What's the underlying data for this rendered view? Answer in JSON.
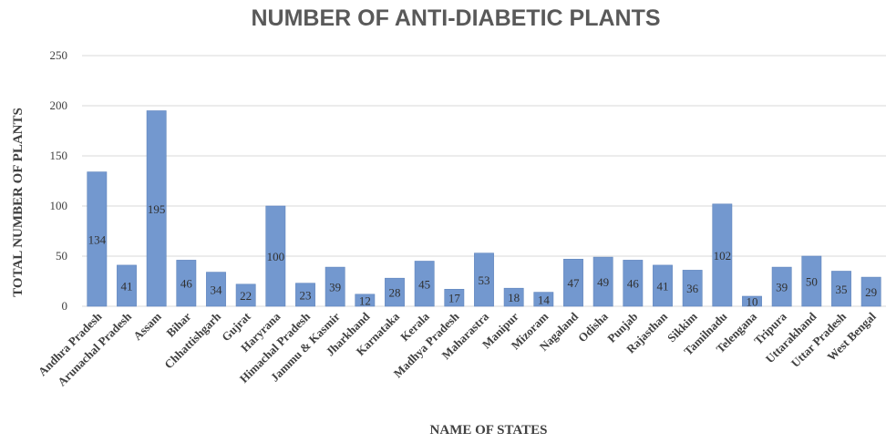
{
  "chart_data": {
    "type": "bar",
    "title": "NUMBER OF ANTI-DIABETIC PLANTS",
    "xlabel": "NAME OF STATES",
    "ylabel": "TOTAL NUMBER OF PLANTS",
    "ylim": [
      0,
      250
    ],
    "yticks": [
      0,
      50,
      100,
      150,
      200,
      250
    ],
    "grid": true,
    "legend": "none",
    "bar_color": "#7398cf",
    "categories": [
      "Andhra Pradesh",
      "Arunachal Pradesh",
      "Assam",
      "Bihar",
      "Chhattishgarh",
      "Gujrat",
      "Haryrana",
      "Himachal Pradesh",
      "Jammu & Kasmir",
      "Jharkhand",
      "Karnataka",
      "Kerala",
      "Madhya Pradesh",
      "Maharastra",
      "Manipur",
      "Mizoram",
      "Nagaland",
      "Odisha",
      "Punjab",
      "Rajasthan",
      "Sikkim",
      "Tamilnadu",
      "Telengana",
      "Tripura",
      "Uttarakhand",
      "Uttar Pradesh",
      "West Bengal"
    ],
    "values": [
      134,
      41,
      195,
      46,
      34,
      22,
      100,
      23,
      39,
      12,
      28,
      45,
      17,
      53,
      18,
      14,
      47,
      49,
      46,
      41,
      36,
      102,
      10,
      39,
      50,
      35,
      29
    ],
    "data_labels": [
      "134",
      "41",
      "195",
      "46",
      "34",
      "22",
      "100",
      "23",
      "39",
      "12",
      "28",
      "45",
      "17",
      "53",
      "18",
      "14",
      "47",
      "49",
      "46",
      "41",
      "36",
      "102",
      "10",
      "39",
      "50",
      "35",
      "29"
    ]
  }
}
